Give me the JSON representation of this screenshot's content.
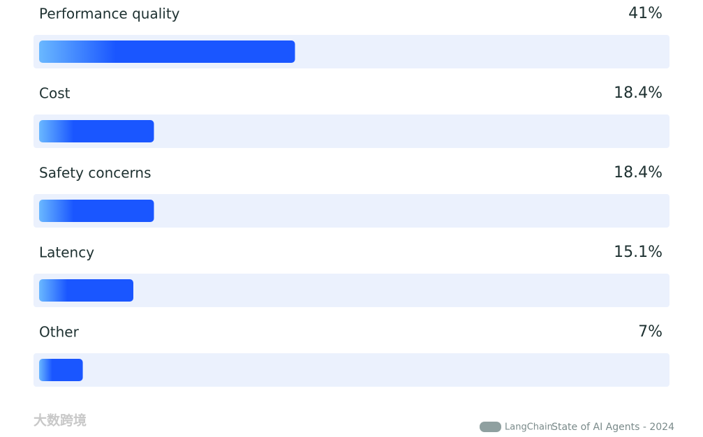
{
  "chart_data": {
    "type": "hbar",
    "categories": [
      "Performance quality",
      "Cost",
      "Safety concerns",
      "Latency",
      "Other"
    ],
    "values": [
      41,
      18.4,
      18.4,
      15.1,
      7
    ],
    "value_labels": [
      "41%",
      "18.4%",
      "18.4%",
      "15.1%",
      "7%"
    ],
    "xlim": [
      0,
      100
    ],
    "color": "#1a56ff",
    "track_color": "#ebf1fd"
  },
  "footer": {
    "brand": "LangChain",
    "source": "State of AI Agents - 2024",
    "watermark": "大数跨境"
  }
}
